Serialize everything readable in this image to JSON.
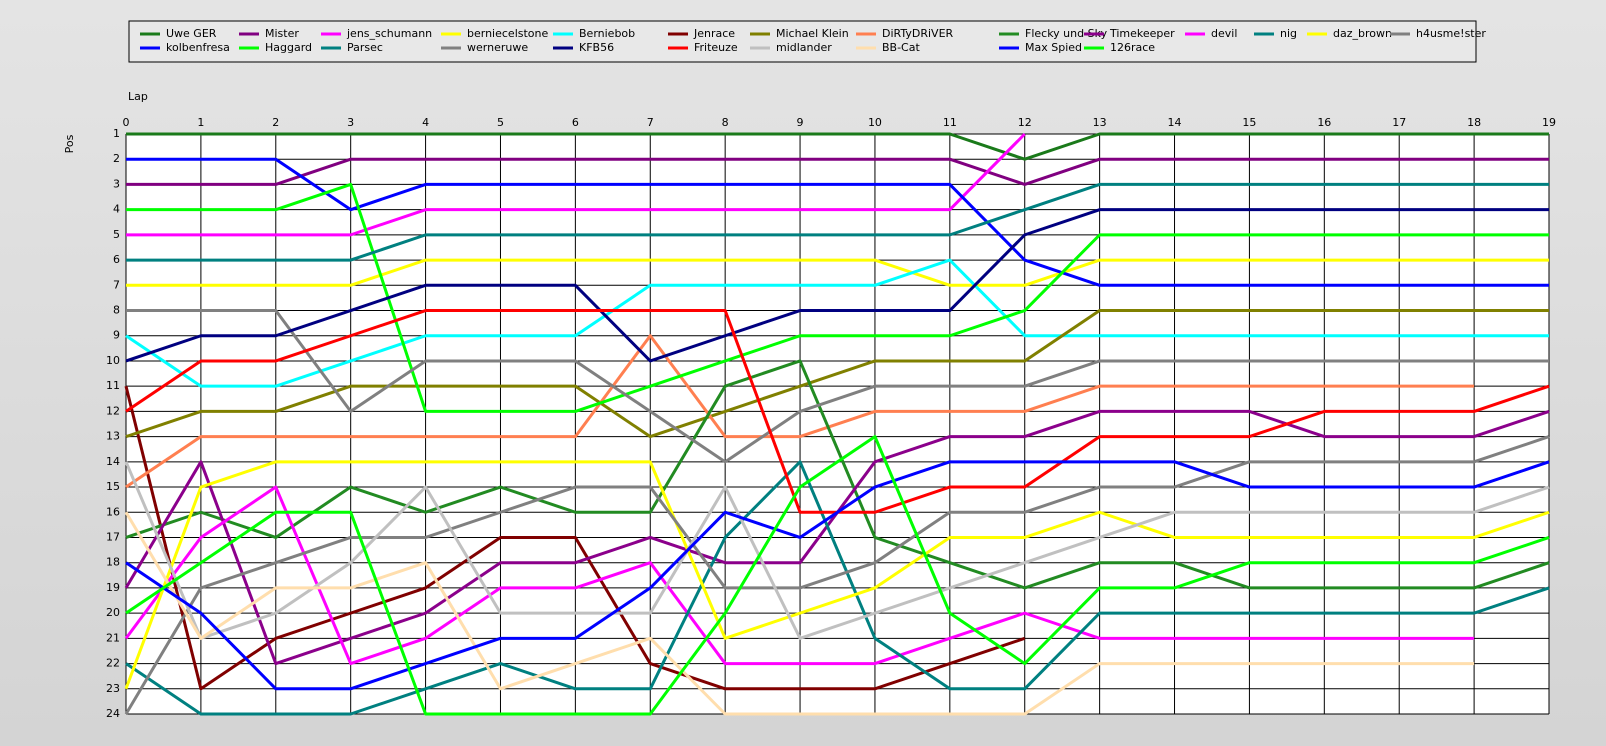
{
  "chart_data": {
    "type": "line",
    "x_label": "Lap",
    "y_label": "Pos",
    "x": [
      0,
      1,
      2,
      3,
      4,
      5,
      6,
      7,
      8,
      9,
      10,
      11,
      12,
      13,
      14,
      15,
      16,
      17,
      18,
      19
    ],
    "xlim": [
      0,
      19
    ],
    "xticks": [
      0,
      1,
      2,
      3,
      4,
      5,
      6,
      7,
      8,
      9,
      10,
      11,
      12,
      13,
      14,
      15,
      16,
      17,
      18,
      19
    ],
    "ylim": [
      1,
      24
    ],
    "y_inverted": true,
    "yticks": [
      1,
      2,
      3,
      4,
      5,
      6,
      7,
      8,
      9,
      10,
      11,
      12,
      13,
      14,
      15,
      16,
      17,
      18,
      19,
      20,
      21,
      22,
      23,
      24
    ],
    "grid": true,
    "legend": "top",
    "series": [
      {
        "name": "Uwe GER",
        "color": "#1a7a1a",
        "values": [
          1,
          1,
          1,
          1,
          1,
          1,
          1,
          1,
          1,
          1,
          1,
          1,
          2,
          1,
          1,
          1,
          1,
          1,
          1,
          1
        ]
      },
      {
        "name": "Mister",
        "color": "#800080",
        "values": [
          3,
          3,
          3,
          2,
          2,
          2,
          2,
          2,
          2,
          2,
          2,
          2,
          3,
          2,
          2,
          2,
          2,
          2,
          2,
          2
        ]
      },
      {
        "name": "jens_schumann",
        "color": "#ff00ff",
        "values": [
          5,
          5,
          5,
          5,
          4,
          4,
          4,
          4,
          4,
          4,
          4,
          4,
          1,
          null,
          null,
          null,
          null,
          null,
          null,
          null
        ]
      },
      {
        "name": "berniecelstone",
        "color": "#ffff00",
        "values": [
          7,
          7,
          7,
          7,
          6,
          6,
          6,
          6,
          6,
          6,
          6,
          7,
          7,
          6,
          6,
          6,
          6,
          6,
          6,
          6
        ]
      },
      {
        "name": "Berniebob",
        "color": "#00ffff",
        "values": [
          9,
          11,
          11,
          10,
          9,
          9,
          9,
          7,
          7,
          7,
          7,
          6,
          9,
          9,
          9,
          9,
          9,
          9,
          9,
          9
        ]
      },
      {
        "name": "Jenrace",
        "color": "#800000",
        "values": [
          11,
          23,
          21,
          20,
          19,
          17,
          17,
          22,
          23,
          23,
          23,
          22,
          21,
          null,
          null,
          null,
          null,
          null,
          null,
          null
        ]
      },
      {
        "name": "Michael Klein",
        "color": "#808000",
        "values": [
          13,
          12,
          12,
          11,
          11,
          11,
          11,
          13,
          12,
          11,
          10,
          10,
          10,
          8,
          8,
          8,
          8,
          8,
          8,
          8
        ]
      },
      {
        "name": "DiRTyDRiVER",
        "color": "#ff7f50",
        "values": [
          15,
          13,
          13,
          13,
          13,
          13,
          13,
          9,
          13,
          13,
          12,
          12,
          12,
          11,
          11,
          11,
          11,
          11,
          11,
          null
        ]
      },
      {
        "name": "Flecky und Sky",
        "color": "#228b22",
        "values": [
          17,
          16,
          17,
          15,
          16,
          15,
          16,
          16,
          11,
          10,
          17,
          18,
          19,
          18,
          18,
          19,
          19,
          19,
          19,
          18
        ]
      },
      {
        "name": "Timekeeper",
        "color": "#8b008b",
        "values": [
          19,
          14,
          22,
          21,
          20,
          18,
          18,
          17,
          18,
          18,
          14,
          13,
          13,
          12,
          12,
          12,
          13,
          13,
          13,
          12
        ]
      },
      {
        "name": "devil",
        "color": "#ff00ff",
        "values": [
          21,
          17,
          15,
          22,
          21,
          19,
          19,
          18,
          22,
          22,
          22,
          21,
          20,
          21,
          21,
          21,
          21,
          21,
          21,
          null
        ]
      },
      {
        "name": "nig",
        "color": "#008080",
        "values": [
          22,
          24,
          24,
          24,
          23,
          22,
          23,
          23,
          17,
          14,
          21,
          23,
          23,
          20,
          20,
          20,
          20,
          20,
          20,
          19
        ]
      },
      {
        "name": "daz_brown",
        "color": "#ffff00",
        "values": [
          23,
          15,
          14,
          14,
          14,
          14,
          14,
          14,
          21,
          20,
          19,
          17,
          17,
          16,
          17,
          17,
          17,
          17,
          17,
          16
        ]
      },
      {
        "name": "h4usme!ster",
        "color": "#808080",
        "values": [
          24,
          19,
          18,
          17,
          17,
          16,
          15,
          15,
          19,
          19,
          18,
          16,
          16,
          15,
          15,
          14,
          14,
          14,
          14,
          13
        ]
      },
      {
        "name": "kolbenfresa",
        "color": "#0000ff",
        "values": [
          2,
          2,
          2,
          4,
          3,
          3,
          3,
          3,
          3,
          3,
          3,
          3,
          6,
          7,
          7,
          7,
          7,
          7,
          7,
          7
        ]
      },
      {
        "name": "Haggard",
        "color": "#00ff00",
        "values": [
          4,
          4,
          4,
          3,
          12,
          12,
          12,
          11,
          10,
          9,
          9,
          9,
          8,
          5,
          5,
          5,
          5,
          5,
          5,
          5
        ]
      },
      {
        "name": "Parsec",
        "color": "#008080",
        "values": [
          6,
          6,
          6,
          6,
          5,
          5,
          5,
          5,
          5,
          5,
          5,
          5,
          4,
          3,
          3,
          3,
          3,
          3,
          3,
          3
        ]
      },
      {
        "name": "werneruwe",
        "color": "#808080",
        "values": [
          8,
          8,
          8,
          12,
          10,
          10,
          10,
          12,
          14,
          12,
          11,
          11,
          11,
          10,
          10,
          10,
          10,
          10,
          10,
          10
        ]
      },
      {
        "name": "KFB56",
        "color": "#000080",
        "values": [
          10,
          9,
          9,
          8,
          7,
          7,
          7,
          10,
          9,
          8,
          8,
          8,
          5,
          4,
          4,
          4,
          4,
          4,
          4,
          4
        ]
      },
      {
        "name": "Friteuze",
        "color": "#ff0000",
        "values": [
          12,
          10,
          10,
          9,
          8,
          8,
          8,
          8,
          8,
          16,
          16,
          15,
          15,
          13,
          13,
          13,
          12,
          12,
          12,
          11
        ]
      },
      {
        "name": "midlander",
        "color": "#c0c0c0",
        "values": [
          14,
          21,
          20,
          18,
          15,
          20,
          20,
          20,
          15,
          21,
          20,
          19,
          18,
          17,
          16,
          16,
          16,
          16,
          16,
          15
        ]
      },
      {
        "name": "BB-Cat",
        "color": "#ffdead",
        "values": [
          16,
          21,
          19,
          19,
          18,
          23,
          22,
          21,
          24,
          24,
          24,
          24,
          24,
          22,
          22,
          22,
          22,
          22,
          22,
          null
        ]
      },
      {
        "name": "Max Spied",
        "color": "#0000ff",
        "values": [
          18,
          20,
          23,
          23,
          22,
          21,
          21,
          19,
          16,
          17,
          15,
          14,
          14,
          14,
          14,
          15,
          15,
          15,
          15,
          14
        ]
      },
      {
        "name": "126race",
        "color": "#00ff00",
        "values": [
          20,
          18,
          16,
          16,
          24,
          24,
          24,
          24,
          20,
          15,
          13,
          20,
          22,
          19,
          19,
          18,
          18,
          18,
          18,
          17
        ]
      }
    ]
  }
}
